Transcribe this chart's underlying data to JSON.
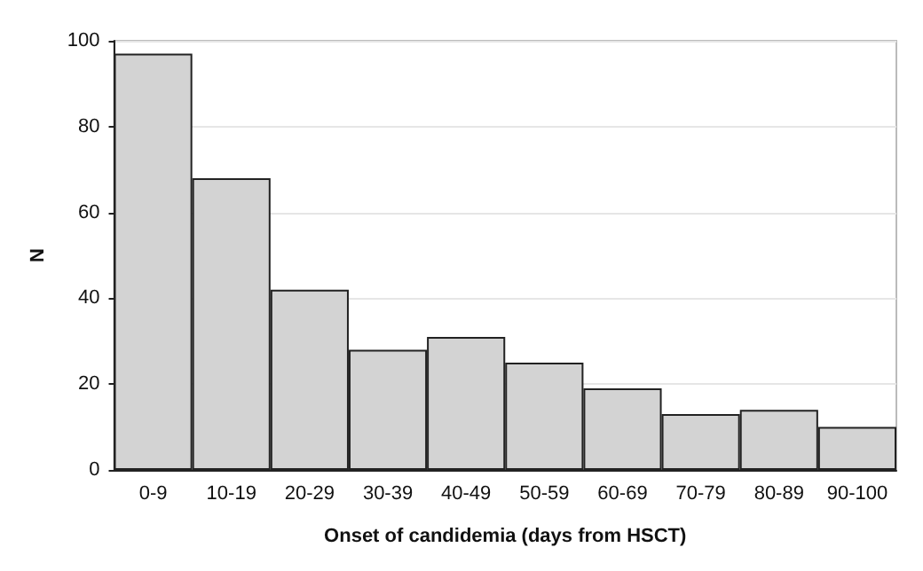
{
  "chart_data": {
    "type": "bar",
    "xlabel": "Onset of candidemia (days from HSCT)",
    "ylabel": "N",
    "categories": [
      "0-9",
      "10-19",
      "20-29",
      "30-39",
      "40-49",
      "50-59",
      "60-69",
      "70-79",
      "80-89",
      "90-100"
    ],
    "values": [
      97,
      68,
      42,
      28,
      31,
      25,
      19,
      13,
      14,
      10
    ],
    "color": "#d3d3d3",
    "ylim": [
      0,
      100
    ],
    "yticks": [
      0,
      20,
      40,
      60,
      80,
      100
    ],
    "grid": "y"
  }
}
